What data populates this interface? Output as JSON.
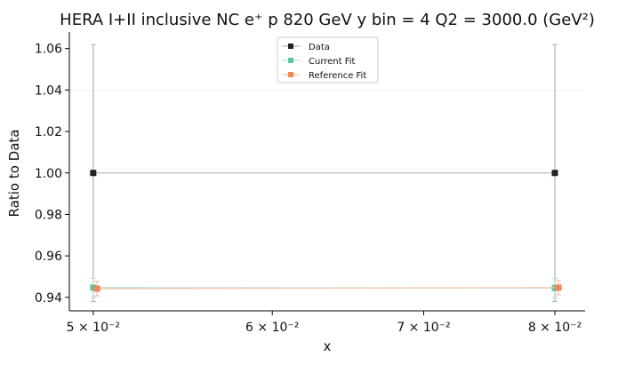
{
  "chart_data": {
    "type": "line",
    "title": "HERA I+II inclusive NC e⁺ p 820 GeV y bin = 4 Q2 = 3000.0 (GeV²)",
    "xlabel": "x",
    "ylabel": "Ratio to Data",
    "x_scale": "log",
    "xlim": [
      0.0488,
      0.0825
    ],
    "ylim": [
      0.9335,
      1.068
    ],
    "x_ticks": [
      {
        "value": 0.05,
        "label": "5 × 10⁻²"
      },
      {
        "value": 0.06,
        "label": "6 × 10⁻²"
      },
      {
        "value": 0.07,
        "label": "7 × 10⁻²"
      },
      {
        "value": 0.08,
        "label": "8 × 10⁻²"
      }
    ],
    "y_ticks": [
      {
        "value": 0.94,
        "label": "0.94"
      },
      {
        "value": 0.96,
        "label": "0.96"
      },
      {
        "value": 0.98,
        "label": "0.98"
      },
      {
        "value": 1.0,
        "label": "1.00"
      },
      {
        "value": 1.02,
        "label": "1.02"
      },
      {
        "value": 1.04,
        "label": "1.04"
      },
      {
        "value": 1.06,
        "label": "1.06"
      }
    ],
    "legend_position": "top-center",
    "series": [
      {
        "name": "Data",
        "color": "#222222",
        "line_color": "#bbbbbb",
        "x": [
          0.05,
          0.08
        ],
        "y": [
          1.0,
          1.0
        ],
        "err": [
          0.062,
          0.062
        ]
      },
      {
        "name": "Current Fit",
        "color": "#5ec4a0",
        "line_color": "#b7e3d2",
        "x": [
          0.05,
          0.08
        ],
        "y": [
          0.9447,
          0.9445
        ],
        "err": [
          0.0045,
          0.0045
        ]
      },
      {
        "name": "Reference Fit",
        "color": "#f4875a",
        "line_color": "#f3c7b0",
        "x": [
          0.0502,
          0.0803
        ],
        "y": [
          0.9442,
          0.9447
        ],
        "err": [
          0.0035,
          0.0035
        ]
      }
    ]
  }
}
